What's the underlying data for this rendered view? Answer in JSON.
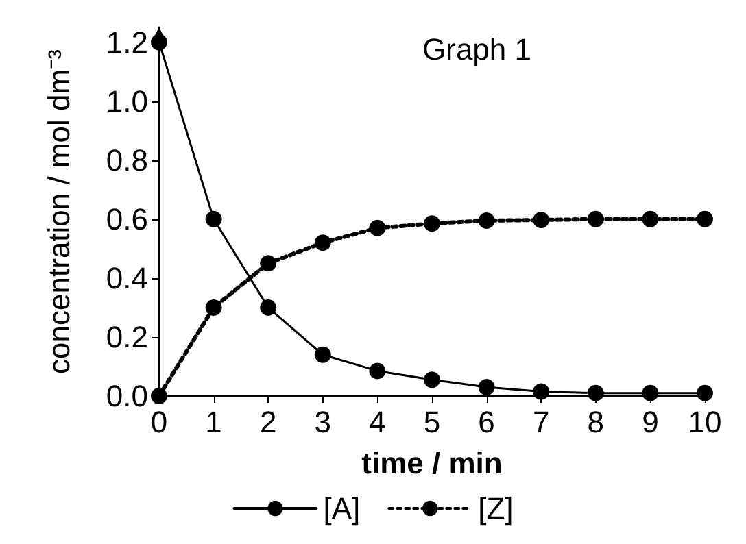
{
  "chart_data": {
    "type": "line",
    "title": "Graph 1",
    "xlabel": "time / min",
    "ylabel": "concentration / mol dm⁻³",
    "x": [
      0,
      1,
      2,
      3,
      4,
      5,
      6,
      7,
      8,
      9,
      10
    ],
    "series": [
      {
        "name": "[A]",
        "color": "#000000",
        "line_style": "solid",
        "values": [
          1.2,
          0.6,
          0.3,
          0.14,
          0.085,
          0.055,
          0.03,
          0.015,
          0.01,
          0.01,
          0.01
        ]
      },
      {
        "name": "[Z]",
        "color": "#000000",
        "line_style": "dotted",
        "values": [
          0,
          0.3,
          0.45,
          0.52,
          0.57,
          0.585,
          0.595,
          0.597,
          0.6,
          0.6,
          0.6
        ]
      }
    ],
    "xlim": [
      0,
      10
    ],
    "xticks": [
      0,
      1,
      2,
      3,
      4,
      5,
      6,
      7,
      8,
      9,
      10
    ],
    "ylim": [
      0,
      1.25
    ],
    "yticks": [
      {
        "value": 0,
        "label": "0.0"
      },
      {
        "value": 0.2,
        "label": "0.2"
      },
      {
        "value": 0.4,
        "label": "0.4"
      },
      {
        "value": 0.6,
        "label": "0.6"
      },
      {
        "value": 0.8,
        "label": "0.8"
      },
      {
        "value": 1,
        "label": "1.0"
      },
      {
        "value": 1.2,
        "label": "1.2"
      }
    ],
    "grid": false,
    "legend": "bottom",
    "marker": "circle"
  }
}
